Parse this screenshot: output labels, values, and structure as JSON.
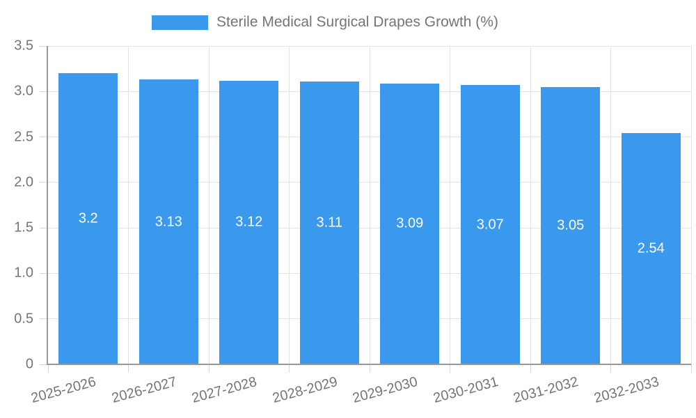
{
  "chart_data": {
    "type": "bar",
    "title": "Sterile Medical Surgical Drapes Growth (%)",
    "legend_entries": [
      "Sterile Medical Surgical Drapes Growth (%)"
    ],
    "legend_position": "top",
    "categories": [
      "2025-2026",
      "2026-2027",
      "2027-2028",
      "2028-2029",
      "2029-2030",
      "2030-2031",
      "2031-2032",
      "2032-2033"
    ],
    "values": [
      3.2,
      3.13,
      3.12,
      3.11,
      3.09,
      3.07,
      3.05,
      2.54
    ],
    "bar_labels": [
      "3.2",
      "3.13",
      "3.12",
      "3.11",
      "3.09",
      "3.07",
      "3.05",
      "2.54"
    ],
    "xlabel": "",
    "ylabel": "",
    "ylim": [
      0,
      3.5
    ],
    "ytick_values": [
      0,
      0.5,
      1,
      1.5,
      2,
      2.5,
      3,
      3.5
    ],
    "ytick_labels": [
      "0",
      "0.5",
      "1.0",
      "1.5",
      "2.0",
      "2.5",
      "3.0",
      "3.5"
    ],
    "grid": true,
    "colors": {
      "bar": "#3A99EC",
      "grid": "#E3E3E3",
      "tick": "#D6D6D6",
      "axis": "#999999",
      "label": "#757575",
      "bar_label": "#FFFFFF",
      "background": "#FFFFFF"
    }
  }
}
